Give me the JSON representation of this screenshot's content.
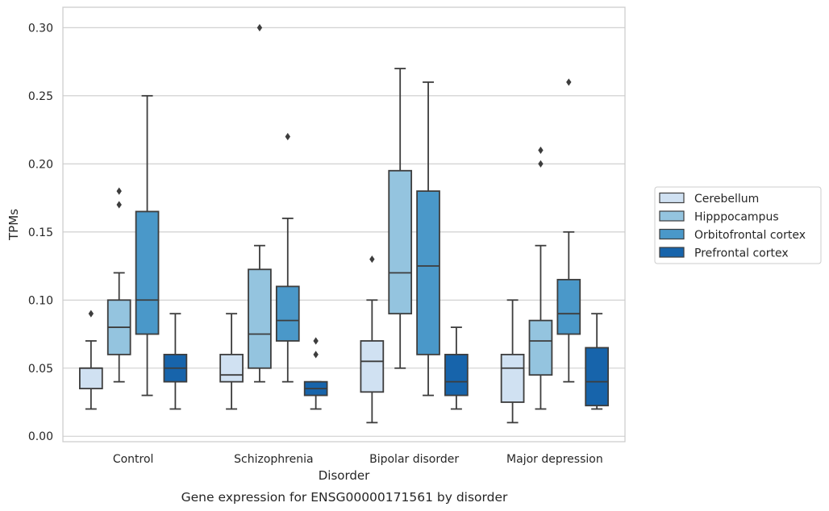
{
  "chart_data": {
    "type": "box",
    "caption": "Gene expression for ENSG00000171561 by disorder",
    "xlabel": "Disorder",
    "ylabel": "TPMs",
    "ylim": [
      -0.004,
      0.315
    ],
    "yticks": [
      0.0,
      0.05,
      0.1,
      0.15,
      0.2,
      0.25,
      0.3
    ],
    "ytick_labels": [
      "0.00",
      "0.05",
      "0.10",
      "0.15",
      "0.20",
      "0.25",
      "0.30"
    ],
    "grid": "horizontal",
    "legend_position": "right",
    "categories": [
      "Control",
      "Schizophrenia",
      "Bipolar disorder",
      "Major depression"
    ],
    "series": [
      {
        "name": "Cerebellum",
        "color": "#d0e1f2",
        "boxes": [
          {
            "whislo": 0.02,
            "q1": 0.035,
            "med": 0.05,
            "q3": 0.05,
            "whishi": 0.07,
            "fliers": [
              0.09
            ]
          },
          {
            "whislo": 0.02,
            "q1": 0.04,
            "med": 0.045,
            "q3": 0.06,
            "whishi": 0.09,
            "fliers": []
          },
          {
            "whislo": 0.01,
            "q1": 0.0325,
            "med": 0.055,
            "q3": 0.07,
            "whishi": 0.1,
            "fliers": [
              0.13
            ]
          },
          {
            "whislo": 0.01,
            "q1": 0.025,
            "med": 0.05,
            "q3": 0.06,
            "whishi": 0.1,
            "fliers": []
          }
        ]
      },
      {
        "name": "Hipppocampus",
        "color": "#94c4df",
        "boxes": [
          {
            "whislo": 0.04,
            "q1": 0.06,
            "med": 0.08,
            "q3": 0.1,
            "whishi": 0.12,
            "fliers": [
              0.17,
              0.18
            ]
          },
          {
            "whislo": 0.04,
            "q1": 0.05,
            "med": 0.075,
            "q3": 0.1225,
            "whishi": 0.14,
            "fliers": [
              0.3
            ]
          },
          {
            "whislo": 0.05,
            "q1": 0.09,
            "med": 0.12,
            "q3": 0.195,
            "whishi": 0.27,
            "fliers": []
          },
          {
            "whislo": 0.02,
            "q1": 0.045,
            "med": 0.07,
            "q3": 0.085,
            "whishi": 0.14,
            "fliers": [
              0.2,
              0.21
            ]
          }
        ]
      },
      {
        "name": "Orbitofrontal cortex",
        "color": "#4a98c9",
        "boxes": [
          {
            "whislo": 0.03,
            "q1": 0.075,
            "med": 0.1,
            "q3": 0.165,
            "whishi": 0.25,
            "fliers": []
          },
          {
            "whislo": 0.04,
            "q1": 0.07,
            "med": 0.085,
            "q3": 0.11,
            "whishi": 0.16,
            "fliers": [
              0.22
            ]
          },
          {
            "whislo": 0.03,
            "q1": 0.06,
            "med": 0.125,
            "q3": 0.18,
            "whishi": 0.26,
            "fliers": []
          },
          {
            "whislo": 0.04,
            "q1": 0.075,
            "med": 0.09,
            "q3": 0.115,
            "whishi": 0.15,
            "fliers": [
              0.26
            ]
          }
        ]
      },
      {
        "name": "Prefrontal cortex",
        "color": "#1764ab",
        "boxes": [
          {
            "whislo": 0.02,
            "q1": 0.04,
            "med": 0.05,
            "q3": 0.06,
            "whishi": 0.09,
            "fliers": []
          },
          {
            "whislo": 0.02,
            "q1": 0.03,
            "med": 0.035,
            "q3": 0.04,
            "whishi": 0.04,
            "fliers": [
              0.06,
              0.07
            ]
          },
          {
            "whislo": 0.02,
            "q1": 0.03,
            "med": 0.04,
            "q3": 0.06,
            "whishi": 0.08,
            "fliers": []
          },
          {
            "whislo": 0.02,
            "q1": 0.0225,
            "med": 0.04,
            "q3": 0.065,
            "whishi": 0.09,
            "fliers": []
          }
        ]
      }
    ]
  }
}
